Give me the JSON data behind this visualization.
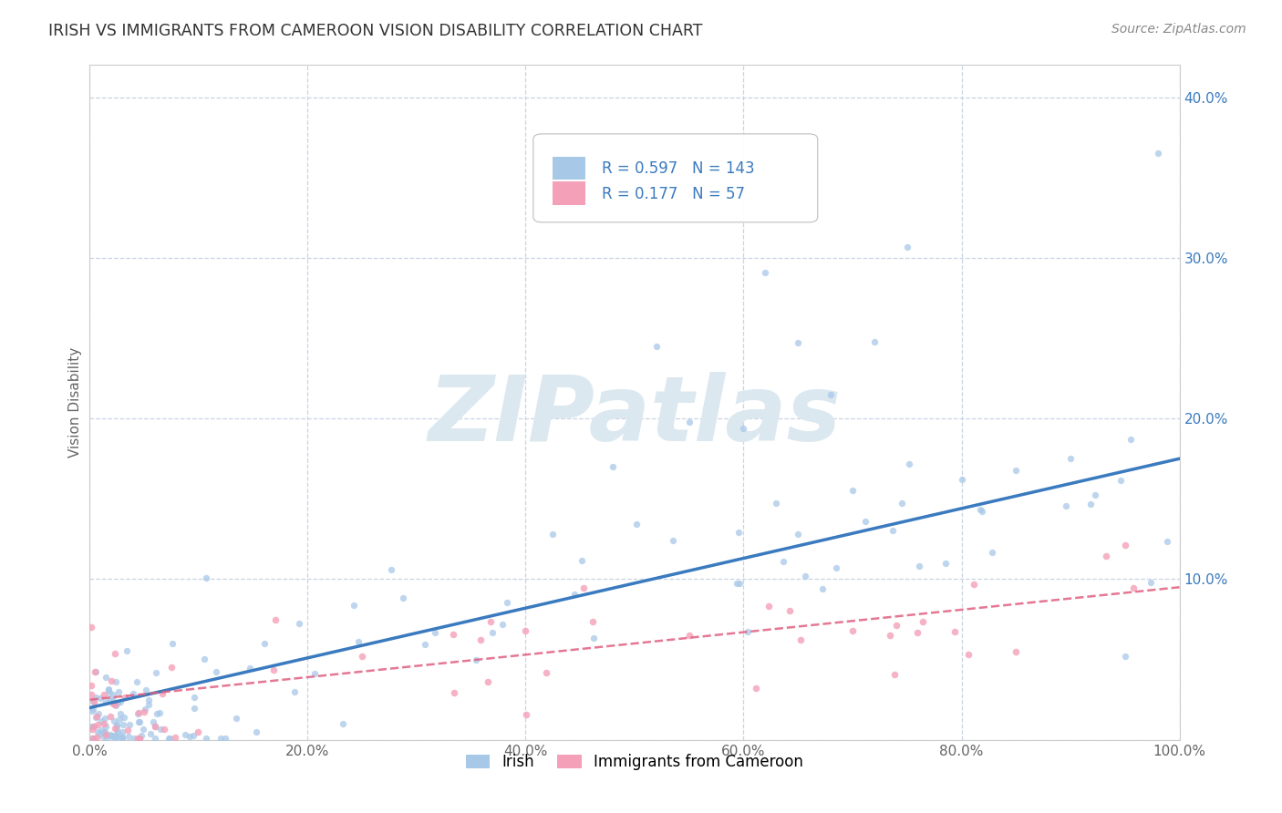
{
  "title": "IRISH VS IMMIGRANTS FROM CAMEROON VISION DISABILITY CORRELATION CHART",
  "source": "Source: ZipAtlas.com",
  "ylabel_label": "Vision Disability",
  "legend_label1": "Irish",
  "legend_label2": "Immigrants from Cameroon",
  "R1": 0.597,
  "N1": 143,
  "R2": 0.177,
  "N2": 57,
  "color1": "#a8c8e8",
  "color2": "#f4a0b8",
  "line_color1": "#3a7abf",
  "line_color2": "#e06080",
  "background_color": "#ffffff",
  "grid_color": "#c8d4e4",
  "title_color": "#333333",
  "xlim": [
    0,
    1.0
  ],
  "ylim": [
    0,
    0.42
  ],
  "watermark": "ZIPatlas",
  "watermark_color": "#dce8f0"
}
